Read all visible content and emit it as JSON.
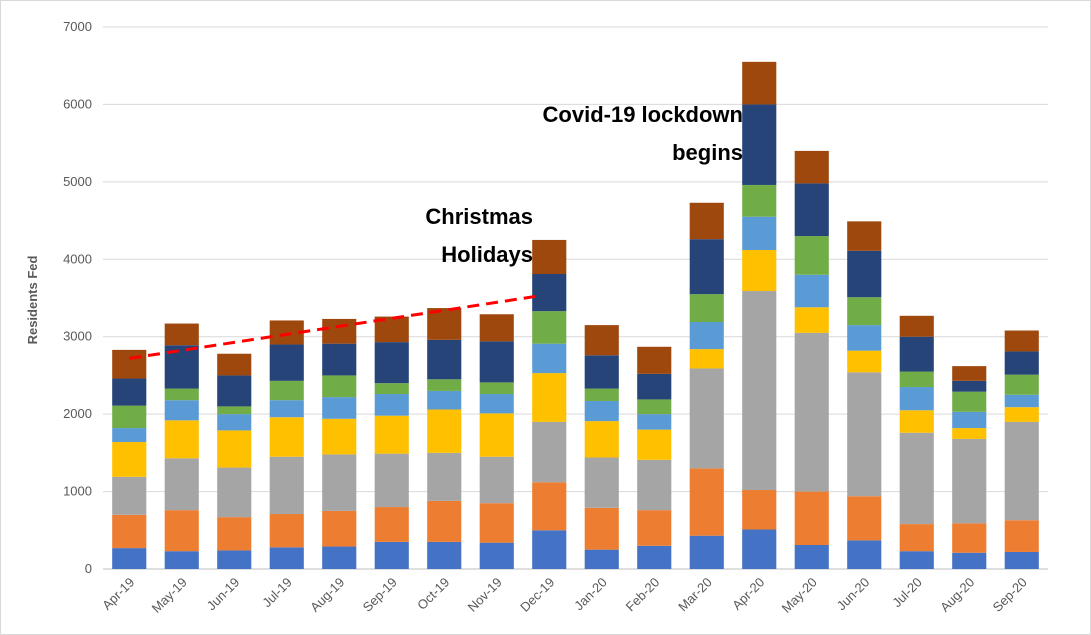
{
  "chart_data": {
    "type": "bar",
    "stacked": true,
    "ylabel": "Residents Fed",
    "ylim": [
      0,
      7000
    ],
    "yticks": [
      "0",
      "1000",
      "2000",
      "3000",
      "4000",
      "5000",
      "6000",
      "7000"
    ],
    "grid": true,
    "categories": [
      "Apr-19",
      "May-19",
      "Jun-19",
      "Jul-19",
      "Aug-19",
      "Sep-19",
      "Oct-19",
      "Nov-19",
      "Dec-19",
      "Jan-20",
      "Feb-20",
      "Mar-20",
      "Apr-20",
      "May-20",
      "Jun-20",
      "Jul-20",
      "Aug-20",
      "Sep-20"
    ],
    "series": [
      {
        "color": "#4472c4",
        "values": [
          270,
          230,
          240,
          280,
          290,
          350,
          350,
          340,
          500,
          250,
          300,
          430,
          510,
          310,
          370,
          230,
          210,
          220
        ]
      },
      {
        "color": "#ed7d31",
        "values": [
          430,
          530,
          430,
          430,
          460,
          450,
          530,
          510,
          620,
          540,
          460,
          870,
          510,
          690,
          570,
          350,
          380,
          410
        ]
      },
      {
        "color": "#a5a5a5",
        "values": [
          490,
          670,
          640,
          740,
          730,
          690,
          620,
          600,
          780,
          650,
          650,
          1290,
          2570,
          2050,
          1600,
          1180,
          1090,
          1270
        ]
      },
      {
        "color": "#ffc000",
        "values": [
          450,
          490,
          480,
          510,
          460,
          490,
          560,
          560,
          630,
          470,
          390,
          250,
          530,
          330,
          280,
          290,
          140,
          190
        ]
      },
      {
        "color": "#5b9bd5",
        "values": [
          180,
          260,
          210,
          220,
          280,
          280,
          240,
          250,
          380,
          260,
          200,
          350,
          430,
          420,
          330,
          300,
          210,
          160
        ]
      },
      {
        "color": "#70ad47",
        "values": [
          290,
          150,
          100,
          250,
          280,
          140,
          150,
          150,
          420,
          160,
          190,
          360,
          410,
          500,
          360,
          200,
          260,
          260
        ]
      },
      {
        "color": "#264478",
        "values": [
          350,
          560,
          400,
          470,
          410,
          530,
          510,
          530,
          480,
          430,
          330,
          710,
          1040,
          680,
          600,
          450,
          140,
          300
        ]
      },
      {
        "color": "#9e480e",
        "values": [
          370,
          280,
          280,
          310,
          320,
          330,
          410,
          350,
          440,
          390,
          350,
          470,
          550,
          420,
          380,
          270,
          190,
          270
        ]
      }
    ],
    "trend_line": {
      "from": "Apr-19",
      "to": "Dec-19",
      "start_value": 2720,
      "end_value": 3520,
      "color": "#ff0000",
      "style": "dashed"
    },
    "annotations": [
      {
        "lines": [
          "Christmas",
          "Holidays"
        ],
        "category": "Dec-19"
      },
      {
        "lines": [
          "Covid-19 lockdown",
          "begins"
        ],
        "category": "Apr-20"
      }
    ]
  }
}
